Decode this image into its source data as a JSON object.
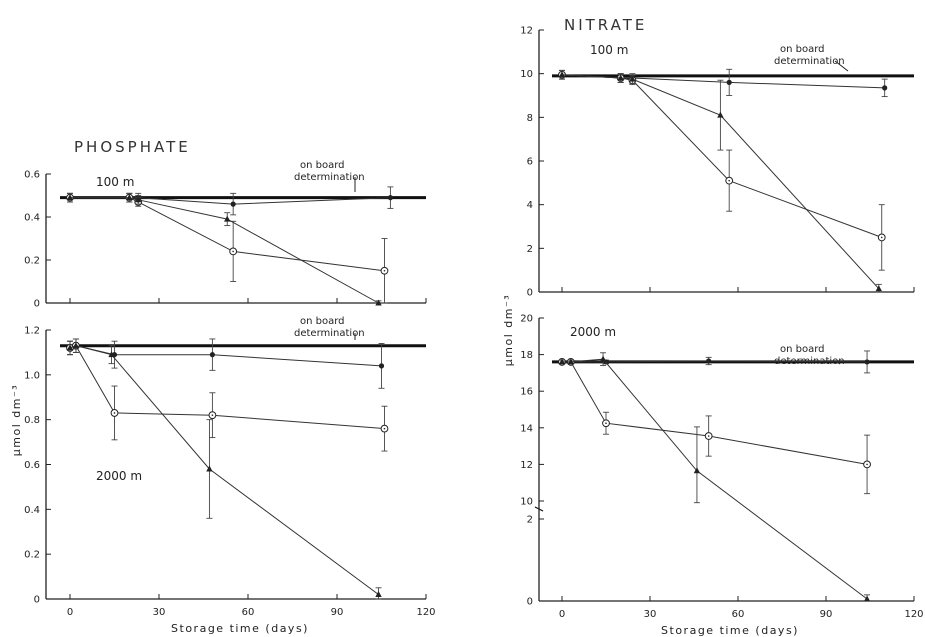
{
  "chart_data": [
    {
      "type": "line",
      "title": "PHOSPHATE",
      "xlabel": "Storage time (days)",
      "ylabel": "µmol dm⁻³",
      "ylabel_sup": "-3",
      "xlim": [
        0,
        120
      ],
      "xticks": [
        "0",
        "30",
        "60",
        "90",
        "120"
      ],
      "panels": [
        {
          "depth_label": "100 m",
          "ylim": [
            0,
            0.6
          ],
          "yticks": [
            "0",
            "0.2",
            "0.4",
            "0.6"
          ],
          "annotation": [
            "on board",
            "determination"
          ],
          "reference_value": 0.49,
          "series": [
            {
              "marker": "filled-circle",
              "points": [
                [
                  0,
                  0.49
                ],
                [
                  20,
                  0.49
                ],
                [
                  23,
                  0.49
                ],
                [
                  55,
                  0.46
                ],
                [
                  108,
                  0.49
                ]
              ],
              "err": [
                0.02,
                0.02,
                0.02,
                0.05,
                0.05
              ]
            },
            {
              "marker": "open-circle",
              "points": [
                [
                  0,
                  0.49
                ],
                [
                  20,
                  0.49
                ],
                [
                  23,
                  0.47
                ],
                [
                  55,
                  0.24
                ],
                [
                  106,
                  0.15
                ]
              ],
              "err": [
                0.02,
                0.02,
                0.02,
                0.14,
                0.15
              ]
            },
            {
              "marker": "filled-triangle",
              "points": [
                [
                  0,
                  0.49
                ],
                [
                  20,
                  0.49
                ],
                [
                  23,
                  0.48
                ],
                [
                  53,
                  0.39
                ],
                [
                  104,
                  0.0
                ]
              ],
              "err": [
                0.02,
                0.02,
                0.02,
                0.03,
                0.01
              ]
            }
          ]
        },
        {
          "depth_label": "2000 m",
          "ylim": [
            0,
            1.2
          ],
          "yticks": [
            "0",
            "0.2",
            "0.4",
            "0.6",
            "0.8",
            "1.0",
            "1.2"
          ],
          "annotation": [
            "on board",
            "determination"
          ],
          "reference_value": 1.13,
          "series": [
            {
              "marker": "filled-circle",
              "points": [
                [
                  0,
                  1.12
                ],
                [
                  2,
                  1.13
                ],
                [
                  15,
                  1.09
                ],
                [
                  48,
                  1.09
                ],
                [
                  105,
                  1.04
                ]
              ],
              "err": [
                0.03,
                0.03,
                0.06,
                0.07,
                0.1
              ]
            },
            {
              "marker": "open-circle",
              "points": [
                [
                  0,
                  1.12
                ],
                [
                  2,
                  1.13
                ],
                [
                  15,
                  0.83
                ],
                [
                  48,
                  0.82
                ],
                [
                  106,
                  0.76
                ]
              ],
              "err": [
                0.03,
                0.03,
                0.12,
                0.1,
                0.1
              ]
            },
            {
              "marker": "filled-triangle",
              "points": [
                [
                  0,
                  1.12
                ],
                [
                  2,
                  1.13
                ],
                [
                  14,
                  1.09
                ],
                [
                  47,
                  0.58
                ],
                [
                  104,
                  0.02
                ]
              ],
              "err": [
                0.03,
                0.03,
                0.04,
                0.22,
                0.03
              ]
            }
          ]
        }
      ]
    },
    {
      "type": "line",
      "title": "NITRATE",
      "xlabel": "Storage time (days)",
      "ylabel": "µmol dm⁻³",
      "ylabel_sup": "-3",
      "xlim": [
        0,
        120
      ],
      "xticks": [
        "0",
        "30",
        "60",
        "90",
        "120"
      ],
      "panels": [
        {
          "depth_label": "100 m",
          "ylim": [
            0,
            12
          ],
          "yticks": [
            "0",
            "2",
            "4",
            "6",
            "8",
            "10",
            "12"
          ],
          "annotation": [
            "on board",
            "determination"
          ],
          "reference_value": 9.9,
          "series": [
            {
              "marker": "filled-circle",
              "points": [
                [
                  0,
                  9.95
                ],
                [
                  20,
                  9.8
                ],
                [
                  24,
                  9.8
                ],
                [
                  57,
                  9.6
                ],
                [
                  110,
                  9.35
                ]
              ],
              "err": [
                0.2,
                0.2,
                0.2,
                0.6,
                0.4
              ]
            },
            {
              "marker": "open-circle",
              "points": [
                [
                  0,
                  9.95
                ],
                [
                  20,
                  9.8
                ],
                [
                  24,
                  9.7
                ],
                [
                  57,
                  5.1
                ],
                [
                  109,
                  2.5
                ]
              ],
              "err": [
                0.2,
                0.2,
                0.2,
                1.4,
                1.5
              ]
            },
            {
              "marker": "filled-triangle",
              "points": [
                [
                  0,
                  9.95
                ],
                [
                  20,
                  9.8
                ],
                [
                  24,
                  9.75
                ],
                [
                  54,
                  8.1
                ],
                [
                  108,
                  0.15
                ]
              ],
              "err": [
                0.2,
                0.2,
                0.2,
                1.6,
                0.2
              ]
            }
          ]
        },
        {
          "depth_label": "2000 m",
          "ylim": [
            0,
            20
          ],
          "yticks": [
            "0",
            "2",
            "10",
            "12",
            "14",
            "16",
            "18",
            "20"
          ],
          "y_break": [
            2,
            10
          ],
          "annotation": [
            "on board",
            "determination"
          ],
          "reference_value": 17.6,
          "series": [
            {
              "marker": "filled-circle",
              "points": [
                [
                  0,
                  17.6
                ],
                [
                  3,
                  17.6
                ],
                [
                  15,
                  17.6
                ],
                [
                  50,
                  17.65
                ],
                [
                  104,
                  17.6
                ]
              ],
              "err": [
                0.1,
                0.1,
                0.1,
                0.2,
                0.6
              ]
            },
            {
              "marker": "open-circle",
              "points": [
                [
                  0,
                  17.6
                ],
                [
                  3,
                  17.6
                ],
                [
                  15,
                  14.25
                ],
                [
                  50,
                  13.55
                ],
                [
                  104,
                  12.0
                ]
              ],
              "err": [
                0.1,
                0.1,
                0.6,
                1.1,
                1.6
              ]
            },
            {
              "marker": "filled-triangle",
              "points": [
                [
                  0,
                  17.6
                ],
                [
                  3,
                  17.6
                ],
                [
                  14,
                  17.75
                ],
                [
                  46,
                  11.65
                ],
                [
                  104,
                  0.05
                ]
              ],
              "err": [
                0.1,
                0.1,
                0.35,
                2.4,
                0.1
              ]
            }
          ]
        }
      ]
    }
  ]
}
